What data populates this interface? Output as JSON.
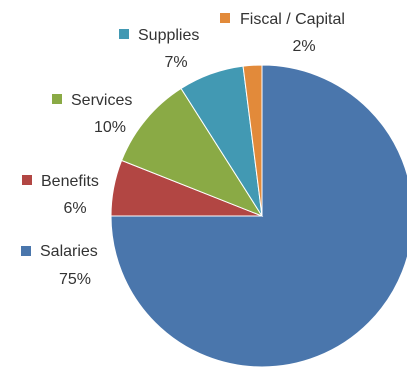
{
  "chart_data": {
    "type": "pie",
    "title": "",
    "slices": [
      {
        "label": "Salaries",
        "value": 75,
        "display": "75%",
        "color": "#4A76AC"
      },
      {
        "label": "Benefits",
        "value": 6,
        "display": "6%",
        "color": "#B24643"
      },
      {
        "label": "Services",
        "value": 10,
        "display": "10%",
        "color": "#8AAA45"
      },
      {
        "label": "Supplies",
        "value": 7,
        "display": "7%",
        "color": "#4299B3"
      },
      {
        "label": "Fiscal / Capital",
        "value": 2,
        "display": "2%",
        "color": "#E28A3A"
      }
    ],
    "start_angle": "top",
    "direction": "clockwise",
    "legend": "labels-with-markers-beside-slices"
  }
}
